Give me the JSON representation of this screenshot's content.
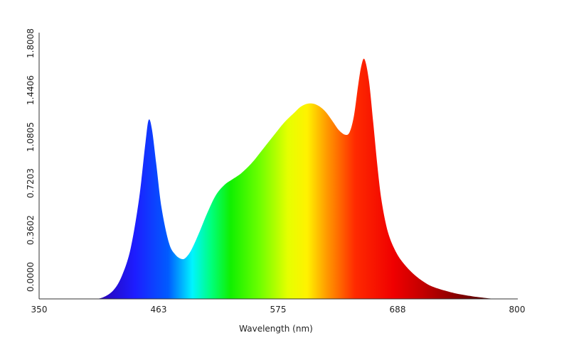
{
  "chart_data": {
    "type": "area",
    "title": "",
    "xlabel": "Wavelength (nm)",
    "ylabel": "",
    "xlim": [
      350,
      800
    ],
    "ylim": [
      0,
      1.8008
    ],
    "x_ticks": [
      "350",
      "463",
      "575",
      "688",
      "800"
    ],
    "y_ticks": [
      "0.0000",
      "0.3602",
      "0.7203",
      "1.0805",
      "1.4406",
      "1.8008"
    ],
    "fill": "visible-spectrum gradient",
    "grid": false,
    "legend": "none",
    "series": [
      {
        "x": [
          350,
          380,
          400,
          410,
          420,
          428,
          436,
          444,
          450,
          453,
          456,
          460,
          465,
          472,
          478,
          484,
          488,
          493,
          500,
          508,
          516,
          524,
          532,
          540,
          550,
          560,
          570,
          580,
          590,
          596,
          602,
          608,
          614,
          620,
          626,
          632,
          638,
          642,
          646,
          650,
          653,
          656,
          660,
          664,
          668,
          672,
          678,
          686,
          695,
          705,
          715,
          725,
          740,
          755,
          765,
          780,
          800
        ],
        "y": [
          0,
          0,
          0,
          0.01,
          0.06,
          0.16,
          0.34,
          0.68,
          1.06,
          1.21,
          1.15,
          0.92,
          0.62,
          0.38,
          0.3,
          0.27,
          0.28,
          0.33,
          0.44,
          0.58,
          0.7,
          0.77,
          0.81,
          0.85,
          0.92,
          1.01,
          1.1,
          1.19,
          1.26,
          1.3,
          1.32,
          1.32,
          1.3,
          1.26,
          1.2,
          1.14,
          1.11,
          1.13,
          1.24,
          1.45,
          1.58,
          1.62,
          1.48,
          1.2,
          0.9,
          0.66,
          0.45,
          0.31,
          0.22,
          0.15,
          0.1,
          0.07,
          0.04,
          0.02,
          0.01,
          0,
          0
        ]
      }
    ]
  }
}
